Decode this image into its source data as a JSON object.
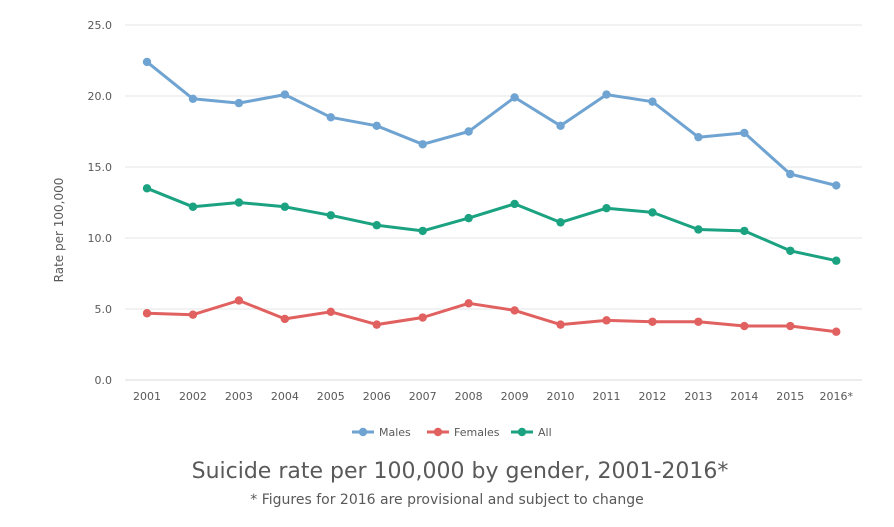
{
  "chart_data": {
    "type": "line",
    "title": "Suicide rate per 100,000 by gender, 2001-2016*",
    "subtitle": "* Figures for 2016 are provisional and subject to change",
    "xlabel": "",
    "ylabel": "Rate per 100,000",
    "categories": [
      "2001",
      "2002",
      "2003",
      "2004",
      "2005",
      "2006",
      "2007",
      "2008",
      "2009",
      "2010",
      "2011",
      "2012",
      "2013",
      "2014",
      "2015",
      "2016*"
    ],
    "ylim": [
      0,
      25
    ],
    "yticks": [
      "0.0",
      "5.0",
      "10.0",
      "15.0",
      "20.0",
      "25.0"
    ],
    "grid": true,
    "legend": "bottom-center",
    "series": [
      {
        "name": "Males",
        "color": "#6fa3d2",
        "values": [
          22.4,
          19.8,
          19.5,
          20.1,
          18.5,
          17.9,
          16.6,
          17.5,
          19.9,
          17.9,
          20.1,
          19.6,
          17.1,
          17.4,
          14.5,
          13.7
        ]
      },
      {
        "name": "Females",
        "color": "#e0615f",
        "values": [
          4.7,
          4.6,
          5.6,
          4.3,
          4.8,
          3.9,
          4.4,
          5.4,
          4.9,
          3.9,
          4.2,
          4.1,
          4.1,
          3.8,
          3.8,
          3.4
        ]
      },
      {
        "name": "All",
        "color": "#1aa281",
        "values": [
          13.5,
          12.2,
          12.5,
          12.2,
          11.6,
          10.9,
          10.5,
          11.4,
          12.4,
          11.1,
          12.1,
          11.8,
          10.6,
          10.5,
          9.1,
          8.4
        ]
      }
    ]
  }
}
